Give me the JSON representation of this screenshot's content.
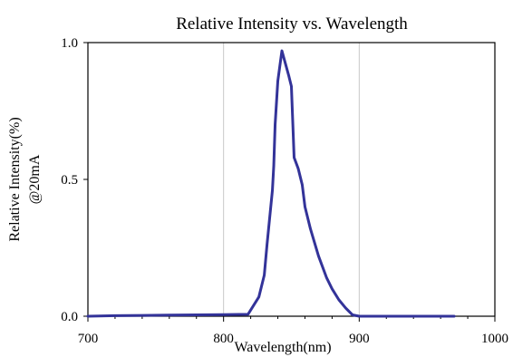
{
  "chart_data": {
    "type": "line",
    "title": "Relative Intensity vs. Wavelength",
    "xlabel": "Wavelength(nm)",
    "ylabel_lines": [
      "Relative Intensity(%)",
      "@20mA"
    ],
    "xlim": [
      700,
      1000
    ],
    "ylim": [
      0,
      1.0
    ],
    "x_ticks": [
      700,
      800,
      900,
      1000
    ],
    "x_tick_labels": [
      "700",
      "800",
      "900",
      "1000"
    ],
    "y_ticks": [
      0,
      0.5,
      1.0
    ],
    "y_tick_labels": [
      "0.0",
      "0.5",
      "1.0"
    ],
    "grid": "vertical-only",
    "legend": "none",
    "line_color": "#333399",
    "series": [
      {
        "x": [
          700,
          720,
          740,
          760,
          780,
          800,
          818,
          826,
          830,
          832,
          834,
          836,
          837,
          838,
          840,
          843,
          848,
          850,
          851,
          852,
          855,
          858,
          860,
          864,
          870,
          876,
          880,
          885,
          890,
          895,
          900,
          920,
          950,
          970
        ],
        "y": [
          0.0,
          0.002,
          0.003,
          0.004,
          0.005,
          0.006,
          0.007,
          0.07,
          0.15,
          0.26,
          0.36,
          0.46,
          0.55,
          0.7,
          0.86,
          0.97,
          0.88,
          0.84,
          0.71,
          0.58,
          0.54,
          0.48,
          0.4,
          0.32,
          0.22,
          0.14,
          0.1,
          0.06,
          0.03,
          0.005,
          0.0,
          0.0,
          0.0,
          0.0
        ]
      }
    ]
  }
}
